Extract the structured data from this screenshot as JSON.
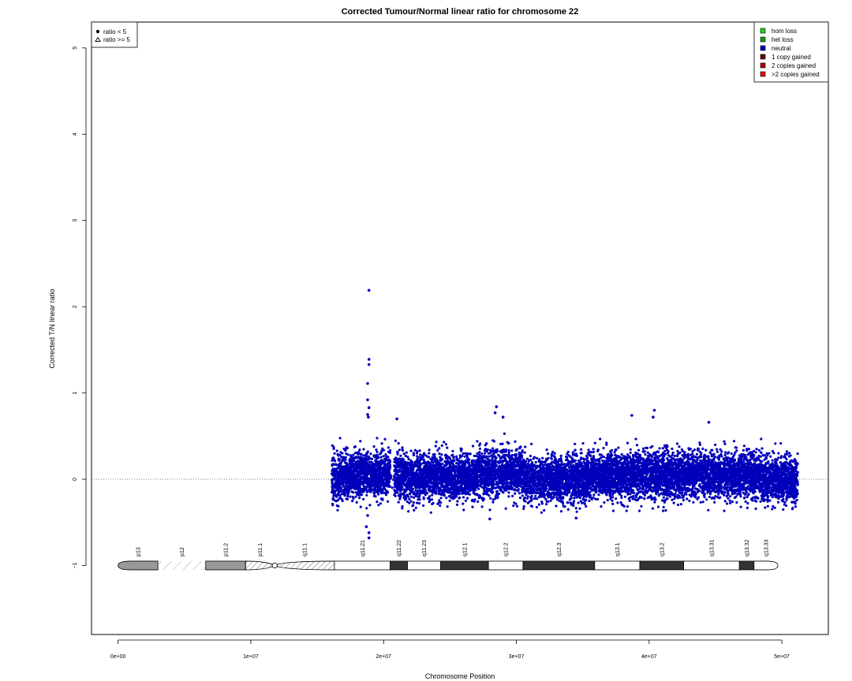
{
  "chart_data": {
    "type": "scatter",
    "title": "Corrected Tumour/Normal linear ratio for chromosome  22",
    "xlabel": "Chromosome Position",
    "ylabel": "Corrected T/N linear ratio",
    "xlim": [
      -2000000,
      53500000
    ],
    "ylim": [
      -1.8,
      5.3
    ],
    "x_ticks": [
      {
        "value": 0,
        "label": "0e+00"
      },
      {
        "value": 10000000,
        "label": "1e+07"
      },
      {
        "value": 20000000,
        "label": "2e+07"
      },
      {
        "value": 30000000,
        "label": "3e+07"
      },
      {
        "value": 40000000,
        "label": "4e+07"
      },
      {
        "value": 50000000,
        "label": "5e+07"
      }
    ],
    "y_ticks": [
      {
        "value": -1,
        "label": "−1"
      },
      {
        "value": 0,
        "label": "0"
      },
      {
        "value": 1,
        "label": "1"
      },
      {
        "value": 2,
        "label": "2"
      },
      {
        "value": 3,
        "label": "3"
      },
      {
        "value": 4,
        "label": "4"
      },
      {
        "value": 5,
        "label": "5"
      }
    ],
    "reference_line": {
      "y": 0,
      "style": "dotted"
    },
    "grid": false,
    "shape_legend": {
      "placement": "top-left",
      "items": [
        {
          "symbol": "dot",
          "label": "ratio < 5"
        },
        {
          "symbol": "triangle",
          "label": "ratio >= 5"
        }
      ]
    },
    "color_legend": {
      "placement": "top-right",
      "items": [
        {
          "label": "hom loss",
          "color": "#22cc22"
        },
        {
          "label": "het loss",
          "color": "#119911"
        },
        {
          "label": "neutral",
          "color": "#0000bb"
        },
        {
          "label": "1 copy gained",
          "color": "#660000"
        },
        {
          "label": "2 copies gained",
          "color": "#aa0000"
        },
        {
          "label": ">2 copies gained",
          "color": "#dd1111"
        }
      ]
    },
    "series": [
      {
        "state": "neutral",
        "color": "#0000bb",
        "segments": [
          {
            "x_start": 16100000,
            "x_end": 16600000,
            "mean": 0.0,
            "sd": 0.16,
            "density": 1.3
          },
          {
            "x_start": 16600000,
            "x_end": 20500000,
            "mean": 0.06,
            "sd": 0.13,
            "density": 1.6
          },
          {
            "x_start": 20500000,
            "x_end": 20800000,
            "mean": 0.0,
            "sd": 0.05,
            "density": 0.1
          },
          {
            "x_start": 20800000,
            "x_end": 27000000,
            "mean": 0.03,
            "sd": 0.13,
            "density": 1.5
          },
          {
            "x_start": 27000000,
            "x_end": 30500000,
            "mean": 0.08,
            "sd": 0.14,
            "density": 1.5
          },
          {
            "x_start": 30500000,
            "x_end": 35500000,
            "mean": 0.0,
            "sd": 0.13,
            "density": 1.5
          },
          {
            "x_start": 35500000,
            "x_end": 48500000,
            "mean": 0.05,
            "sd": 0.13,
            "density": 1.6
          },
          {
            "x_start": 48500000,
            "x_end": 51200000,
            "mean": 0.0,
            "sd": 0.13,
            "density": 1.6
          }
        ],
        "outliers": [
          [
            18900000,
            2.19
          ],
          [
            18900000,
            1.39
          ],
          [
            18900000,
            1.33
          ],
          [
            18800000,
            1.11
          ],
          [
            18800000,
            0.92
          ],
          [
            18900000,
            0.83
          ],
          [
            18800000,
            0.75
          ],
          [
            18850000,
            0.72
          ],
          [
            18900000,
            -0.62
          ],
          [
            18900000,
            -0.68
          ],
          [
            18700000,
            -0.55
          ],
          [
            18800000,
            -0.42
          ],
          [
            21000000,
            0.7
          ],
          [
            28500000,
            0.84
          ],
          [
            28400000,
            0.77
          ],
          [
            29000000,
            0.72
          ],
          [
            38700000,
            0.74
          ],
          [
            40400000,
            0.8
          ],
          [
            40300000,
            0.72
          ],
          [
            44500000,
            0.66
          ],
          [
            28000000,
            -0.46
          ],
          [
            34500000,
            -0.45
          ]
        ]
      }
    ],
    "ideogram": {
      "y": -1,
      "bands": [
        {
          "name": "p13",
          "start": 0,
          "end": 3000000,
          "stain": "gvar"
        },
        {
          "name": "p12",
          "start": 3000000,
          "end": 6600000,
          "stain": "stalk"
        },
        {
          "name": "p11.2",
          "start": 6600000,
          "end": 9600000,
          "stain": "gvar"
        },
        {
          "name": "p11.1",
          "start": 9600000,
          "end": 11800000,
          "stain": "acen"
        },
        {
          "name": "q11.1",
          "start": 11800000,
          "end": 16300000,
          "stain": "acen"
        },
        {
          "name": "q11.21",
          "start": 16300000,
          "end": 20500000,
          "stain": "gneg"
        },
        {
          "name": "q11.22",
          "start": 20500000,
          "end": 21800000,
          "stain": "gpos"
        },
        {
          "name": "q11.23",
          "start": 21800000,
          "end": 24300000,
          "stain": "gneg"
        },
        {
          "name": "q12.1",
          "start": 24300000,
          "end": 27900000,
          "stain": "gpos"
        },
        {
          "name": "q12.2",
          "start": 27900000,
          "end": 30500000,
          "stain": "gneg"
        },
        {
          "name": "q12.3",
          "start": 30500000,
          "end": 35900000,
          "stain": "gpos"
        },
        {
          "name": "q13.1",
          "start": 35900000,
          "end": 39300000,
          "stain": "gneg"
        },
        {
          "name": "q13.2",
          "start": 39300000,
          "end": 42600000,
          "stain": "gpos"
        },
        {
          "name": "q13.31",
          "start": 42600000,
          "end": 46800000,
          "stain": "gneg"
        },
        {
          "name": "q13.32",
          "start": 46800000,
          "end": 47900000,
          "stain": "gpos"
        },
        {
          "name": "q13.33",
          "start": 47900000,
          "end": 49700000,
          "stain": "gneg"
        }
      ]
    }
  }
}
